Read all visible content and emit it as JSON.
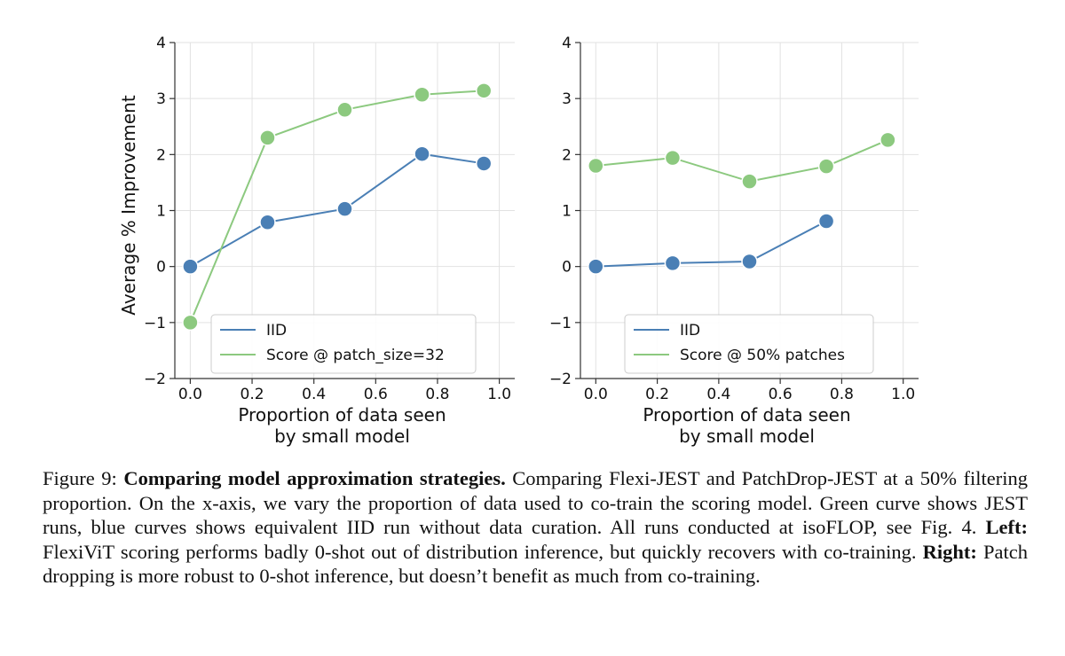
{
  "colors": {
    "iid": "#4a7fb5",
    "score": "#8cc97f",
    "grid": "#e2e2e2",
    "axis": "#333333"
  },
  "chart_data": [
    {
      "type": "line",
      "id": "left",
      "xlabel": [
        "Proportion of data seen",
        "by small model"
      ],
      "ylabel": "Average % Improvement",
      "xlim": [
        -0.05,
        1.05
      ],
      "ylim": [
        -2,
        4
      ],
      "xticks": [
        0.0,
        0.2,
        0.4,
        0.6,
        0.8,
        1.0
      ],
      "xtick_labels": [
        "0.0",
        "0.2",
        "0.4",
        "0.6",
        "0.8",
        "1.0"
      ],
      "yticks": [
        -2,
        -1,
        0,
        1,
        2,
        3,
        4
      ],
      "ytick_labels": [
        "−2",
        "−1",
        "0",
        "1",
        "2",
        "3",
        "4"
      ],
      "grid": true,
      "legend": "lower-right",
      "series": [
        {
          "name": "IID",
          "color_key": "iid",
          "x": [
            0.0,
            0.25,
            0.5,
            0.75,
            0.95
          ],
          "y": [
            0.0,
            0.79,
            1.03,
            2.01,
            1.84
          ]
        },
        {
          "name": "Score @ patch_size=32",
          "color_key": "score",
          "x": [
            0.0,
            0.25,
            0.5,
            0.75,
            0.95
          ],
          "y": [
            -1.0,
            2.3,
            2.8,
            3.07,
            3.14
          ]
        }
      ]
    },
    {
      "type": "line",
      "id": "right",
      "xlabel": [
        "Proportion of data seen",
        "by small model"
      ],
      "ylabel": "",
      "xlim": [
        -0.05,
        1.05
      ],
      "ylim": [
        -2,
        4
      ],
      "xticks": [
        0.0,
        0.2,
        0.4,
        0.6,
        0.8,
        1.0
      ],
      "xtick_labels": [
        "0.0",
        "0.2",
        "0.4",
        "0.6",
        "0.8",
        "1.0"
      ],
      "yticks": [
        -2,
        -1,
        0,
        1,
        2,
        3,
        4
      ],
      "ytick_labels": [
        "−2",
        "−1",
        "0",
        "1",
        "2",
        "3",
        "4"
      ],
      "grid": true,
      "legend": "lower-right",
      "series": [
        {
          "name": "IID",
          "color_key": "iid",
          "x": [
            0.0,
            0.25,
            0.5,
            0.75
          ],
          "y": [
            0.0,
            0.06,
            0.09,
            0.81
          ]
        },
        {
          "name": "Score @ 50% patches",
          "color_key": "score",
          "x": [
            0.0,
            0.25,
            0.5,
            0.75,
            0.95
          ],
          "y": [
            1.8,
            1.94,
            1.52,
            1.79,
            2.26
          ]
        }
      ]
    }
  ],
  "caption": {
    "label": "Figure 9:",
    "title": "Comparing model approximation strategies.",
    "text1": "Comparing Flexi-JEST and PatchDrop-JEST at a 50% filtering proportion. On the x-axis, we vary the proportion of data used to co-train the scoring model. Green curve shows JEST runs, blue curves shows equivalent IID run without data curation. All runs conducted at isoFLOP, see Fig. 4.",
    "left_label": "Left:",
    "left_text": "FlexiViT scoring performs badly 0-shot out of distribution inference, but quickly recovers with co-training.",
    "right_label": "Right:",
    "right_text": "Patch dropping is more robust to 0-shot inference, but doesn’t benefit as much from co-training."
  }
}
